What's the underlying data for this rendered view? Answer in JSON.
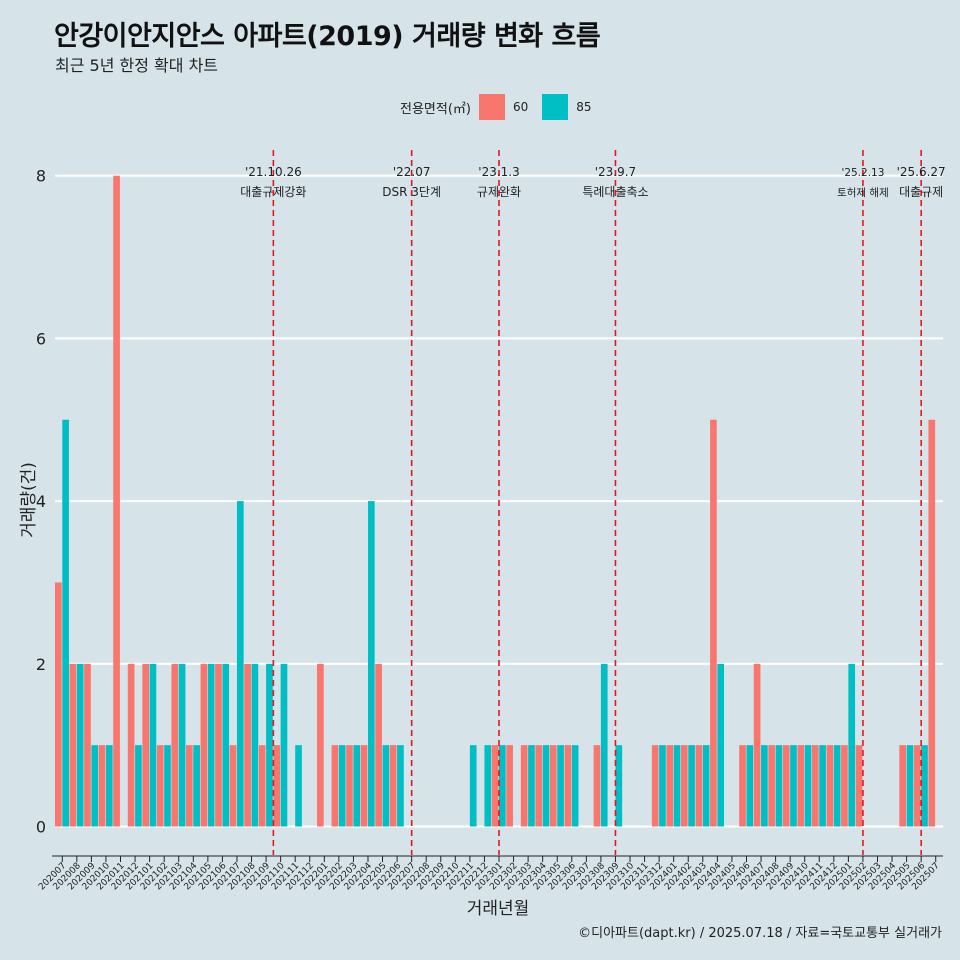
{
  "title": "안강이안지안스 아파트(2019) 거래량 변화 흐름",
  "subtitle": "최근 5년 한정 확대 차트",
  "caption": "©디아파트(dapt.kr) / 2025.07.18 / 자료=국토교통부 실거래가",
  "colors": {
    "background": "#d6e4ea",
    "series60": "#f8766d",
    "series85": "#00bfc4",
    "event_line": "#e8141c",
    "grid": "#ffffff"
  },
  "chart_data": {
    "type": "bar",
    "title": "안강이안지안스 아파트(2019) 거래량 변화 흐름",
    "xlabel": "거래년월",
    "ylabel": "거래량(건)",
    "ylim": [
      -0.35,
      8.5
    ],
    "yticks": [
      0,
      2,
      4,
      6,
      8
    ],
    "legend_title": "전용면적(㎡)",
    "legend_position": "top",
    "categories": [
      "202007",
      "202008",
      "202009",
      "202010",
      "202011",
      "202012",
      "202101",
      "202102",
      "202103",
      "202104",
      "202105",
      "202106",
      "202107",
      "202108",
      "202109",
      "202110",
      "202111",
      "202112",
      "202201",
      "202202",
      "202203",
      "202204",
      "202205",
      "202206",
      "202207",
      "202208",
      "202209",
      "202210",
      "202211",
      "202212",
      "202301",
      "202302",
      "202303",
      "202304",
      "202305",
      "202306",
      "202307",
      "202308",
      "202309",
      "202310",
      "202311",
      "202312",
      "202401",
      "202402",
      "202403",
      "202404",
      "202405",
      "202406",
      "202407",
      "202408",
      "202409",
      "202410",
      "202411",
      "202412",
      "202501",
      "202502",
      "202503",
      "202504",
      "202505",
      "202506",
      "202507"
    ],
    "series": [
      {
        "name": "60",
        "values": [
          3,
          2,
          2,
          1,
          8,
          2,
          2,
          1,
          2,
          1,
          2,
          2,
          1,
          2,
          1,
          1,
          0,
          0,
          2,
          1,
          1,
          1,
          2,
          1,
          0,
          0,
          0,
          0,
          0,
          0,
          1,
          1,
          1,
          1,
          1,
          1,
          0,
          1,
          0,
          0,
          0,
          1,
          1,
          1,
          1,
          5,
          0,
          1,
          2,
          1,
          1,
          1,
          1,
          1,
          1,
          1,
          0,
          0,
          1,
          1,
          5
        ]
      },
      {
        "name": "85",
        "values": [
          5,
          2,
          1,
          1,
          0,
          1,
          2,
          1,
          2,
          1,
          2,
          2,
          4,
          2,
          2,
          2,
          1,
          0,
          0,
          1,
          1,
          4,
          1,
          1,
          0,
          0,
          0,
          0,
          1,
          1,
          1,
          0,
          1,
          1,
          1,
          1,
          0,
          2,
          1,
          0,
          0,
          1,
          1,
          1,
          1,
          2,
          0,
          1,
          1,
          1,
          1,
          1,
          1,
          1,
          2,
          0,
          0,
          0,
          1,
          1,
          0
        ]
      }
    ],
    "events": [
      {
        "date": "'21.10.26",
        "label": "대출규제강화",
        "position": 15.0
      },
      {
        "date": "'22.07",
        "label": "DSR 3단계",
        "position": 24.5
      },
      {
        "date": "'23.1.3",
        "label": "규제완화",
        "position": 30.5
      },
      {
        "date": "'23.9.7",
        "label": "특례대출축소",
        "position": 38.5
      },
      {
        "date": "'25.2.13",
        "label": "토허제 해제",
        "position": 55.5
      },
      {
        "date": "'25.6.27",
        "label": "대출규제",
        "position": 59.5
      }
    ]
  }
}
